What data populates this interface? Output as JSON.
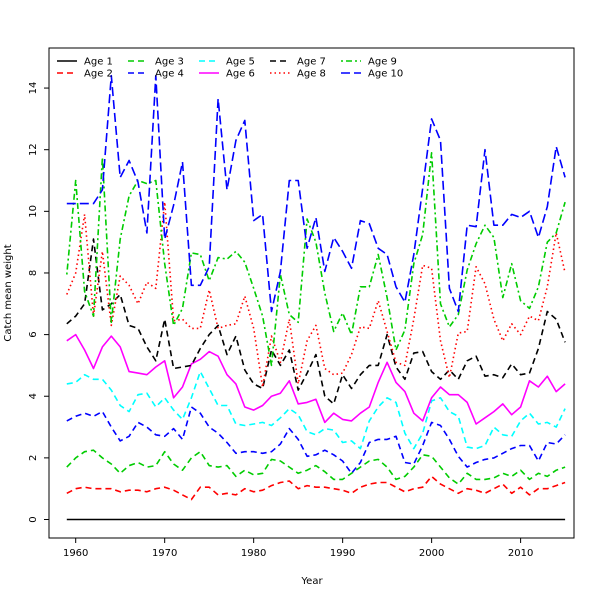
{
  "chart_data": {
    "type": "line",
    "title": "",
    "xlabel": "Year",
    "ylabel": "Catch mean weight",
    "xlim": [
      1957,
      2016
    ],
    "ylim": [
      -0.6,
      15.3
    ],
    "xticks": [
      "1960",
      "1970",
      "1980",
      "1990",
      "2000",
      "2010"
    ],
    "yticks": [
      "0",
      "2",
      "4",
      "6",
      "8",
      "10",
      "12",
      "14"
    ],
    "legend_position": "top-left",
    "x": [
      1959,
      1960,
      1961,
      1962,
      1963,
      1964,
      1965,
      1966,
      1967,
      1968,
      1969,
      1970,
      1971,
      1972,
      1973,
      1974,
      1975,
      1976,
      1977,
      1978,
      1979,
      1980,
      1981,
      1982,
      1983,
      1984,
      1985,
      1986,
      1987,
      1988,
      1989,
      1990,
      1991,
      1992,
      1993,
      1994,
      1995,
      1996,
      1997,
      1998,
      1999,
      2000,
      2001,
      2002,
      2003,
      2004,
      2005,
      2006,
      2007,
      2008,
      2009,
      2010,
      2011,
      2012,
      2013,
      2014,
      2015
    ],
    "series": [
      {
        "name": "Age 1",
        "color": "#000000",
        "dash": "solid",
        "values": [
          0,
          0,
          0,
          0,
          0,
          0,
          0,
          0,
          0,
          0,
          0,
          0,
          0,
          0,
          0,
          0,
          0,
          0,
          0,
          0,
          0,
          0,
          0,
          0,
          0,
          0,
          0,
          0,
          0,
          0,
          0,
          0,
          0,
          0,
          0,
          0,
          0,
          0,
          0,
          0,
          0,
          0,
          0,
          0,
          0,
          0,
          0,
          0,
          0,
          0,
          0,
          0,
          0,
          0,
          0,
          0,
          0
        ]
      },
      {
        "name": "Age 2",
        "color": "#ff0000",
        "dash": "dashed",
        "values": [
          0.85,
          1.0,
          1.05,
          1.0,
          1.0,
          1.0,
          0.9,
          0.95,
          0.95,
          0.9,
          1.0,
          1.05,
          0.95,
          0.8,
          0.65,
          1.05,
          1.05,
          0.8,
          0.85,
          0.8,
          1.0,
          0.9,
          0.95,
          1.1,
          1.2,
          1.25,
          1.0,
          1.1,
          1.05,
          1.05,
          1.0,
          0.95,
          0.85,
          1.05,
          1.15,
          1.2,
          1.2,
          1.05,
          0.9,
          1.0,
          1.05,
          1.4,
          1.15,
          1.0,
          0.85,
          1.0,
          0.95,
          0.85,
          1.0,
          1.15,
          0.85,
          1.05,
          0.8,
          1.0,
          1.0,
          1.1,
          1.2
        ]
      },
      {
        "name": "Age 3",
        "color": "#00cc00",
        "dash": "dashed",
        "values": [
          1.7,
          2.0,
          2.2,
          2.25,
          2.0,
          1.8,
          1.5,
          1.75,
          1.85,
          1.7,
          1.75,
          2.2,
          1.8,
          1.6,
          2.0,
          2.2,
          1.75,
          1.7,
          1.75,
          1.4,
          1.6,
          1.45,
          1.5,
          1.95,
          1.9,
          1.7,
          1.5,
          1.6,
          1.75,
          1.55,
          1.3,
          1.3,
          1.5,
          1.7,
          1.9,
          1.95,
          1.7,
          1.3,
          1.4,
          1.7,
          2.1,
          2.05,
          1.7,
          1.35,
          1.15,
          1.5,
          1.3,
          1.3,
          1.35,
          1.5,
          1.4,
          1.6,
          1.3,
          1.5,
          1.4,
          1.6,
          1.7
        ]
      },
      {
        "name": "Age 4",
        "color": "#0000ff",
        "dash": "dashed",
        "values": [
          3.2,
          3.35,
          3.45,
          3.35,
          3.5,
          3.0,
          2.55,
          2.7,
          3.15,
          3.0,
          2.75,
          2.7,
          2.95,
          2.6,
          3.65,
          3.45,
          3.0,
          2.8,
          2.5,
          2.15,
          2.2,
          2.2,
          2.15,
          2.2,
          2.45,
          2.95,
          2.6,
          2.05,
          2.1,
          2.25,
          2.1,
          1.9,
          1.5,
          1.85,
          2.5,
          2.6,
          2.6,
          2.7,
          1.85,
          1.8,
          2.4,
          3.15,
          3.05,
          2.6,
          2.05,
          1.7,
          1.85,
          1.95,
          2.0,
          2.15,
          2.3,
          2.4,
          2.4,
          1.9,
          2.5,
          2.45,
          2.75
        ]
      },
      {
        "name": "Age 5",
        "color": "#00ffff",
        "dash": "dashed",
        "values": [
          4.4,
          4.45,
          4.7,
          4.55,
          4.55,
          4.2,
          3.7,
          3.5,
          4.05,
          4.1,
          3.65,
          3.95,
          3.55,
          3.25,
          3.95,
          4.8,
          4.25,
          3.7,
          3.7,
          3.1,
          3.05,
          3.1,
          3.15,
          3.05,
          3.3,
          3.6,
          3.4,
          2.85,
          2.75,
          2.95,
          2.9,
          2.5,
          2.55,
          2.3,
          3.2,
          3.65,
          3.95,
          3.8,
          2.8,
          2.3,
          2.8,
          3.85,
          3.95,
          3.5,
          3.35,
          2.35,
          2.3,
          2.4,
          3.0,
          2.75,
          2.7,
          3.2,
          3.45,
          3.1,
          3.15,
          3.0,
          3.6
        ]
      },
      {
        "name": "Age 6",
        "color": "#ff00ff",
        "dash": "solid",
        "values": [
          5.8,
          6.0,
          5.5,
          4.9,
          5.6,
          5.95,
          5.6,
          4.8,
          4.75,
          4.7,
          4.95,
          5.15,
          3.95,
          4.3,
          5.05,
          5.2,
          5.45,
          5.3,
          4.7,
          4.4,
          3.65,
          3.55,
          3.7,
          4.0,
          4.1,
          4.5,
          3.75,
          3.8,
          3.9,
          3.15,
          3.45,
          3.25,
          3.2,
          3.45,
          3.65,
          4.45,
          5.1,
          4.45,
          4.15,
          3.45,
          3.2,
          3.95,
          4.3,
          4.05,
          4.05,
          3.8,
          3.1,
          3.3,
          3.5,
          3.75,
          3.4,
          3.65,
          4.5,
          4.3,
          4.65,
          4.15,
          4.4
        ]
      },
      {
        "name": "Age 7",
        "color": "#000000",
        "dash": "dashed",
        "values": [
          6.35,
          6.6,
          7.0,
          9.1,
          6.8,
          7.0,
          7.3,
          6.3,
          6.2,
          5.6,
          5.15,
          6.5,
          4.9,
          4.95,
          5.0,
          5.55,
          6.0,
          6.3,
          5.35,
          5.95,
          4.85,
          4.4,
          4.25,
          5.5,
          5.0,
          5.5,
          4.2,
          4.75,
          5.35,
          4.0,
          3.75,
          4.7,
          4.25,
          4.7,
          5.0,
          5.0,
          6.0,
          4.95,
          4.55,
          5.4,
          5.45,
          4.8,
          4.55,
          4.85,
          4.55,
          5.15,
          5.3,
          4.65,
          4.7,
          4.6,
          5.05,
          4.7,
          4.75,
          5.55,
          6.75,
          6.5,
          5.75
        ]
      },
      {
        "name": "Age 8",
        "color": "#ff0000",
        "dash": "dotted",
        "values": [
          7.3,
          8.0,
          9.9,
          6.6,
          8.7,
          6.3,
          7.9,
          7.6,
          7.0,
          7.7,
          7.5,
          10.3,
          6.45,
          6.5,
          6.2,
          6.2,
          7.45,
          6.2,
          6.3,
          6.35,
          7.25,
          6.2,
          4.3,
          5.95,
          5.1,
          6.5,
          4.4,
          5.8,
          6.3,
          4.9,
          4.7,
          4.75,
          5.35,
          6.25,
          6.2,
          7.1,
          6.1,
          5.1,
          5.0,
          6.5,
          8.25,
          8.15,
          5.8,
          4.6,
          6.05,
          6.1,
          8.2,
          7.65,
          6.5,
          5.8,
          6.35,
          6.0,
          6.6,
          6.45,
          7.55,
          9.3,
          8.0
        ]
      },
      {
        "name": "Age 9",
        "color": "#00cc00",
        "dash": "dashdot",
        "values": [
          7.95,
          11.0,
          7.4,
          6.6,
          11.75,
          6.4,
          9.1,
          10.5,
          11.0,
          10.9,
          11.0,
          8.3,
          6.3,
          6.85,
          8.65,
          8.6,
          7.75,
          8.5,
          8.45,
          8.7,
          8.35,
          7.5,
          6.6,
          5.0,
          7.95,
          6.65,
          6.4,
          9.75,
          9.0,
          7.35,
          6.1,
          6.7,
          6.0,
          7.55,
          7.55,
          8.6,
          7.2,
          5.5,
          6.15,
          8.3,
          9.25,
          11.9,
          7.0,
          6.25,
          6.65,
          8.1,
          8.95,
          9.55,
          9.15,
          7.2,
          8.3,
          7.1,
          6.85,
          7.55,
          9.0,
          9.3,
          10.3
        ]
      },
      {
        "name": "Age 10",
        "color": "#0000ff",
        "dash": "longdash",
        "values": [
          10.25,
          10.25,
          10.25,
          10.25,
          10.7,
          14.4,
          11.1,
          11.65,
          10.95,
          9.3,
          14.4,
          9.1,
          10.2,
          11.6,
          7.6,
          7.6,
          8.2,
          13.65,
          10.7,
          12.3,
          12.95,
          9.7,
          9.9,
          6.75,
          8.05,
          11.0,
          11.0,
          8.8,
          9.8,
          8.05,
          9.15,
          8.7,
          8.15,
          9.7,
          9.6,
          8.8,
          8.6,
          7.55,
          7.05,
          8.6,
          10.75,
          13.0,
          12.3,
          7.5,
          6.75,
          9.55,
          9.5,
          12.0,
          9.55,
          9.55,
          9.9,
          9.8,
          10.0,
          9.15,
          10.15,
          12.1,
          11.1
        ]
      }
    ]
  }
}
